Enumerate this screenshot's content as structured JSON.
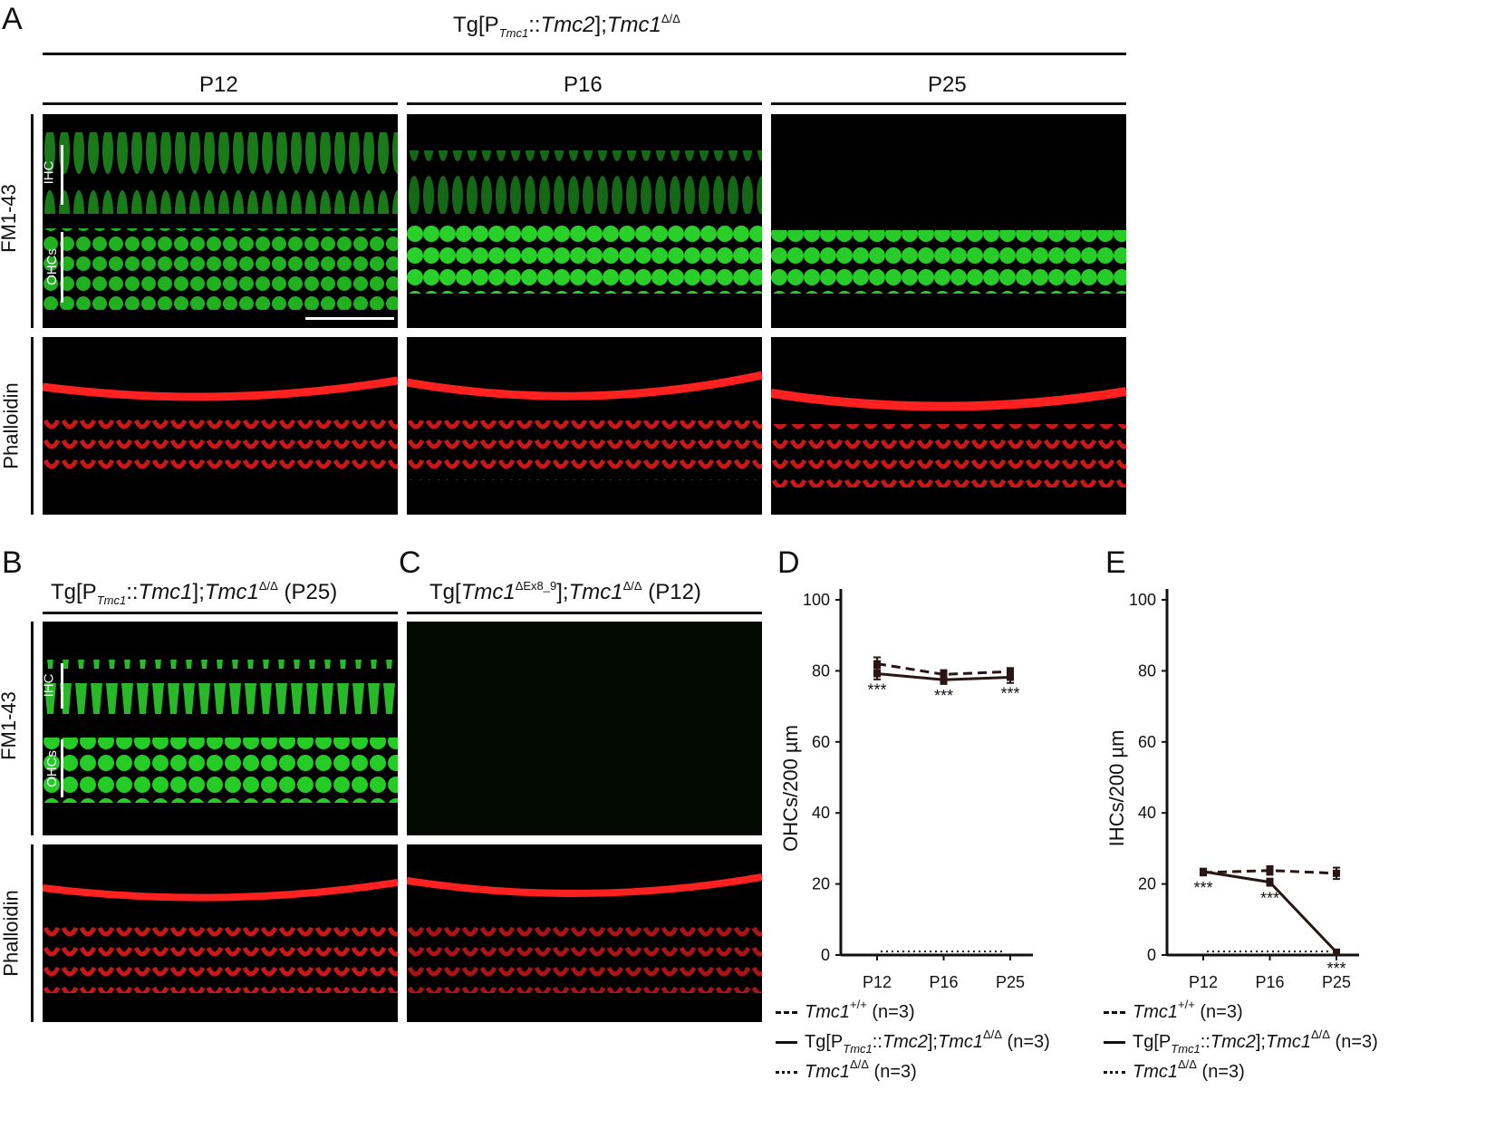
{
  "panels": {
    "A": "A",
    "B": "B",
    "C": "C",
    "D": "D",
    "E": "E"
  },
  "panel_a": {
    "title_prefix": "Tg[P",
    "title_sub": "Tmc1",
    "title_mid": "::",
    "title_gene": "Tmc2",
    "title_sep": "];",
    "title_gene2": "Tmc1",
    "title_sup": "Δ/Δ",
    "timepoints": [
      "P12",
      "P16",
      "P25"
    ],
    "row_labels": [
      "FM1-43",
      "Phalloidin"
    ],
    "ihc": "IHC",
    "ohcs": "OHCs"
  },
  "panel_b": {
    "title_prefix": "Tg[P",
    "title_sub": "Tmc1",
    "title_mid": "::",
    "title_gene": "Tmc1",
    "title_sep": "];",
    "title_gene2": "Tmc1",
    "title_sup": "Δ/Δ",
    "title_suffix": " (P25)",
    "row_labels": [
      "FM1-43",
      "Phalloidin"
    ],
    "ihc": "IHC",
    "ohcs": "OHCs"
  },
  "panel_c": {
    "title_prefix": "Tg[",
    "title_gene": "Tmc1",
    "title_sup": "ΔEx8_9",
    "title_sep": "];",
    "title_gene2": "Tmc1",
    "title_sup2": "Δ/Δ",
    "title_suffix": " (P12)"
  },
  "legend": {
    "wt_gene": "Tmc1",
    "wt_sup": "+/+",
    "wt_n": " (n=3)",
    "tg_prefix": "Tg[P",
    "tg_sub": "Tmc1",
    "tg_mid": "::",
    "tg_gene": "Tmc2",
    "tg_sep": "];",
    "tg_gene2": "Tmc1",
    "tg_sup": "Δ/Δ",
    "tg_n": " (n=3)",
    "ko_gene": "Tmc1",
    "ko_sup": "Δ/Δ",
    "ko_n": " (n=3)"
  },
  "colors": {
    "green": "#22c422",
    "red": "#e01818",
    "line": "#2a1515"
  },
  "chart_data": [
    {
      "type": "line",
      "panel": "D",
      "ylabel": "OHCs/200 µm",
      "categories": [
        "P12",
        "P16",
        "P25"
      ],
      "ylim": [
        0,
        100
      ],
      "yticks": [
        0,
        20,
        40,
        60,
        80,
        100
      ],
      "series": [
        {
          "name": "Tmc1+/+ (n=3)",
          "style": "dashed",
          "values": [
            82.0,
            79.0,
            79.8
          ],
          "errors": [
            1.8,
            1.2,
            1.0
          ]
        },
        {
          "name": "Tg[PTmc1::Tmc2];Tmc1Δ/Δ (n=3)",
          "style": "solid",
          "values": [
            79.2,
            77.5,
            78.2
          ],
          "errors": [
            1.6,
            1.2,
            1.6
          ]
        },
        {
          "name": "Tmc1Δ/Δ (n=3)",
          "style": "dotted",
          "values": [
            1,
            1,
            1
          ],
          "errors": [
            0,
            0,
            0
          ]
        }
      ],
      "annotations": [
        "***",
        "***",
        "***"
      ]
    },
    {
      "type": "line",
      "panel": "E",
      "ylabel": "IHCs/200 µm",
      "categories": [
        "P12",
        "P16",
        "P25"
      ],
      "ylim": [
        0,
        100
      ],
      "yticks": [
        0,
        20,
        40,
        60,
        80,
        100
      ],
      "series": [
        {
          "name": "Tmc1+/+ (n=3)",
          "style": "dashed",
          "values": [
            23.2,
            23.8,
            23.0
          ],
          "errors": [
            0.8,
            1.2,
            1.6
          ]
        },
        {
          "name": "Tg[PTmc1::Tmc2];Tmc1Δ/Δ (n=3)",
          "style": "solid",
          "values": [
            23.5,
            20.5,
            0.8
          ],
          "errors": [
            0.8,
            1.0,
            0.4
          ]
        },
        {
          "name": "Tmc1Δ/Δ (n=3)",
          "style": "dotted",
          "values": [
            1,
            1,
            1
          ],
          "errors": [
            0,
            0,
            0
          ]
        }
      ],
      "annotations": [
        "***",
        "***",
        "***"
      ]
    }
  ]
}
